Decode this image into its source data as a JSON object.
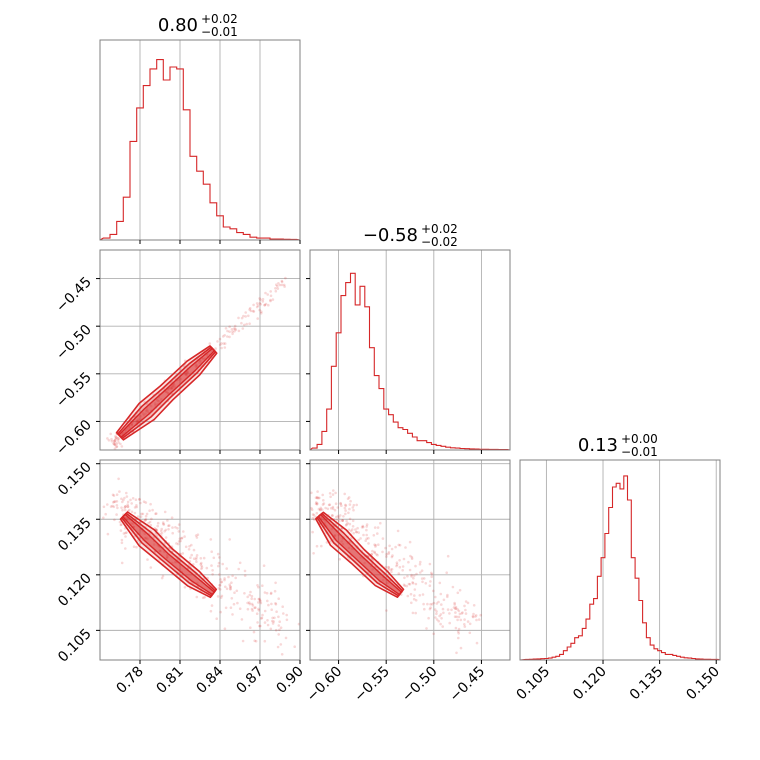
{
  "colors": {
    "accent": "#d62728",
    "grid": "#b0b0b0",
    "frame": "#808080"
  },
  "chart_data": [
    {
      "type": "histogram",
      "panel": "diag-0",
      "title": {
        "main": "0.80",
        "plus": "+0.02",
        "minus": "−0.01"
      },
      "xlim": [
        0.75,
        0.9
      ],
      "grid_x": [
        0.78,
        0.81,
        0.84,
        0.87,
        0.9
      ],
      "bins": [
        0.755,
        0.76,
        0.765,
        0.77,
        0.775,
        0.78,
        0.785,
        0.79,
        0.795,
        0.8,
        0.805,
        0.81,
        0.815,
        0.82,
        0.825,
        0.83,
        0.835,
        0.84,
        0.845,
        0.85,
        0.855,
        0.86,
        0.865,
        0.87,
        0.875,
        0.88,
        0.885,
        0.89,
        0.895
      ],
      "counts": [
        0.01,
        0.03,
        0.1,
        0.23,
        0.53,
        0.71,
        0.83,
        0.92,
        0.97,
        0.86,
        0.93,
        0.92,
        0.7,
        0.45,
        0.37,
        0.3,
        0.2,
        0.13,
        0.07,
        0.06,
        0.04,
        0.03,
        0.015,
        0.01,
        0.01,
        0.005,
        0.005,
        0.004,
        0.003
      ]
    },
    {
      "type": "histogram",
      "panel": "diag-1",
      "title": {
        "main": "−0.58",
        "plus": "+0.02",
        "minus": "−0.02"
      },
      "xlim": [
        -0.63,
        -0.42
      ],
      "grid_x": [
        -0.6,
        -0.55,
        -0.5,
        -0.45
      ],
      "bins": [
        -0.625,
        -0.62,
        -0.615,
        -0.61,
        -0.605,
        -0.6,
        -0.595,
        -0.59,
        -0.585,
        -0.58,
        -0.575,
        -0.57,
        -0.565,
        -0.56,
        -0.555,
        -0.55,
        -0.545,
        -0.54,
        -0.535,
        -0.53,
        -0.525,
        -0.52,
        -0.515,
        -0.51,
        -0.505,
        -0.5,
        -0.495,
        -0.49,
        -0.485,
        -0.48,
        -0.475,
        -0.47,
        -0.465,
        -0.46,
        -0.455,
        -0.45,
        -0.445,
        -0.44,
        -0.435,
        -0.43,
        -0.425
      ],
      "counts": [
        0.01,
        0.03,
        0.1,
        0.22,
        0.45,
        0.63,
        0.83,
        0.9,
        0.95,
        0.78,
        0.88,
        0.77,
        0.55,
        0.4,
        0.33,
        0.22,
        0.19,
        0.15,
        0.12,
        0.11,
        0.09,
        0.07,
        0.05,
        0.05,
        0.04,
        0.03,
        0.025,
        0.02,
        0.015,
        0.012,
        0.01,
        0.008,
        0.007,
        0.006,
        0.005,
        0.004,
        0.004,
        0.003,
        0.003,
        0.002,
        0.002
      ]
    },
    {
      "type": "histogram",
      "panel": "diag-2",
      "title": {
        "main": "0.13",
        "plus": "+0.00",
        "minus": "−0.01"
      },
      "xlim": [
        0.098,
        0.151
      ],
      "grid_x": [
        0.105,
        0.12,
        0.135,
        0.15
      ],
      "bins": [
        0.1,
        0.101,
        0.102,
        0.103,
        0.104,
        0.105,
        0.106,
        0.107,
        0.108,
        0.109,
        0.11,
        0.111,
        0.112,
        0.113,
        0.114,
        0.115,
        0.116,
        0.117,
        0.118,
        0.119,
        0.12,
        0.121,
        0.122,
        0.123,
        0.124,
        0.125,
        0.126,
        0.127,
        0.128,
        0.129,
        0.13,
        0.131,
        0.132,
        0.133,
        0.134,
        0.135,
        0.136,
        0.137,
        0.138,
        0.139,
        0.14,
        0.141,
        0.142,
        0.143,
        0.144,
        0.145,
        0.146,
        0.147,
        0.148,
        0.149,
        0.15
      ],
      "counts": [
        0.003,
        0.004,
        0.005,
        0.006,
        0.007,
        0.008,
        0.01,
        0.015,
        0.02,
        0.03,
        0.05,
        0.07,
        0.09,
        0.12,
        0.13,
        0.17,
        0.22,
        0.3,
        0.33,
        0.45,
        0.55,
        0.68,
        0.82,
        0.93,
        0.95,
        0.92,
        0.99,
        0.86,
        0.55,
        0.44,
        0.32,
        0.2,
        0.12,
        0.08,
        0.06,
        0.05,
        0.04,
        0.03,
        0.03,
        0.025,
        0.02,
        0.015,
        0.012,
        0.01,
        0.008,
        0.006,
        0.005,
        0.004,
        0.004,
        0.003,
        0.003
      ]
    },
    {
      "type": "scatter",
      "panel": "p10",
      "xlim": [
        0.75,
        0.9
      ],
      "ylim": [
        -0.63,
        -0.42
      ],
      "grid_x": [
        0.78,
        0.81,
        0.84,
        0.87,
        0.9
      ],
      "yticks": [
        -0.45,
        -0.5,
        -0.55,
        -0.6
      ],
      "ytick_labels": [
        "−0.45",
        "−0.50",
        "−0.55",
        "−0.60"
      ],
      "trend_x": [
        0.76,
        0.89
      ],
      "trend_y": [
        -0.6216,
        -0.4526
      ],
      "contour_x": [
        0.765,
        0.785,
        0.8,
        0.82,
        0.835
      ],
      "contour_y": [
        -0.6155,
        -0.5895,
        -0.57,
        -0.544,
        -0.5245
      ]
    },
    {
      "type": "scatter",
      "panel": "p20",
      "xlim": [
        0.75,
        0.9
      ],
      "ylim": [
        0.097,
        0.151
      ],
      "grid_x": [
        0.78,
        0.81,
        0.84,
        0.87,
        0.9
      ],
      "xticks": [
        0.78,
        0.81,
        0.84,
        0.87,
        0.9
      ],
      "xtick_labels": [
        "0.78",
        "0.81",
        "0.84",
        "0.87",
        "0.90"
      ],
      "yticks": [
        0.15,
        0.135,
        0.12,
        0.105
      ],
      "ytick_labels": [
        "0.150",
        "0.135",
        "0.120",
        "0.105"
      ],
      "trend_x": [
        0.765,
        0.885
      ],
      "trend_y": [
        0.138,
        0.106
      ],
      "contour_x": [
        0.768,
        0.785,
        0.8,
        0.82,
        0.835
      ],
      "contour_y": [
        0.136,
        0.13,
        0.125,
        0.119,
        0.115
      ]
    },
    {
      "type": "scatter",
      "panel": "p21",
      "xlim": [
        -0.63,
        -0.42
      ],
      "ylim": [
        0.097,
        0.151
      ],
      "grid_x": [
        -0.6,
        -0.55,
        -0.5,
        -0.45
      ],
      "xticks": [
        -0.6,
        -0.55,
        -0.5,
        -0.45
      ],
      "xtick_labels": [
        "−0.60",
        "−0.55",
        "−0.50",
        "−0.45"
      ],
      "trend_x": [
        -0.625,
        -0.46
      ],
      "trend_y": [
        0.138,
        0.106
      ],
      "contour_x": [
        -0.62,
        -0.6,
        -0.58,
        -0.555,
        -0.535
      ],
      "contour_y": [
        0.136,
        0.13,
        0.125,
        0.119,
        0.115
      ]
    },
    {
      "type": "axis",
      "panel": "diag-2-x",
      "xticks": [
        0.105,
        0.12,
        0.135,
        0.15
      ],
      "xtick_labels": [
        "0.105",
        "0.120",
        "0.135",
        "0.150"
      ]
    }
  ]
}
